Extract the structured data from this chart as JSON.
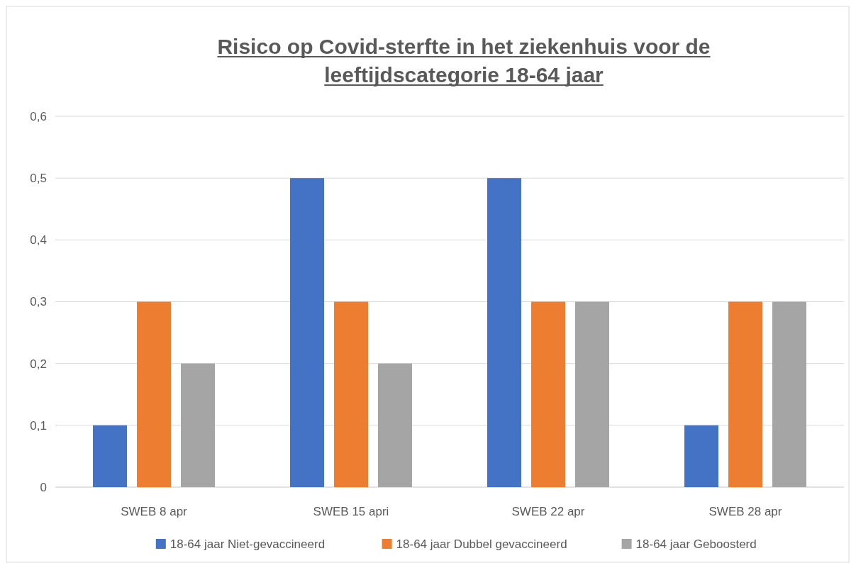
{
  "chart_data": {
    "type": "bar",
    "title": "Risico op Covid-sterfte in het ziekenhuis voor de leeftijdscategorie 18-64 jaar",
    "categories": [
      "SWEB 8 apr",
      "SWEB 15 apri",
      "SWEB 22 apr",
      "SWEB 28 apr"
    ],
    "series": [
      {
        "name": "18-64 jaar Niet-gevaccineerd",
        "color": "#4472c4",
        "values": [
          0.1,
          0.5,
          0.5,
          0.1
        ]
      },
      {
        "name": "18-64 jaar Dubbel gevaccineerd",
        "color": "#ed7d31",
        "values": [
          0.3,
          0.3,
          0.3,
          0.3
        ]
      },
      {
        "name": "18-64 jaar Geboosterd",
        "color": "#a5a5a5",
        "values": [
          0.2,
          0.2,
          0.3,
          0.3
        ]
      }
    ],
    "ylim": [
      0,
      0.6
    ],
    "yticks": [
      0,
      {
        "value": 0.1,
        "label": "0,1"
      },
      {
        "value": 0.2,
        "label": "0,2"
      },
      {
        "value": 0.3,
        "label": "0,3"
      },
      {
        "value": 0.4,
        "label": "0,4"
      },
      {
        "value": 0.5,
        "label": "0,5"
      },
      {
        "value": 0.6,
        "label": "0,6"
      }
    ],
    "grid": "y",
    "legend": "bottom"
  }
}
